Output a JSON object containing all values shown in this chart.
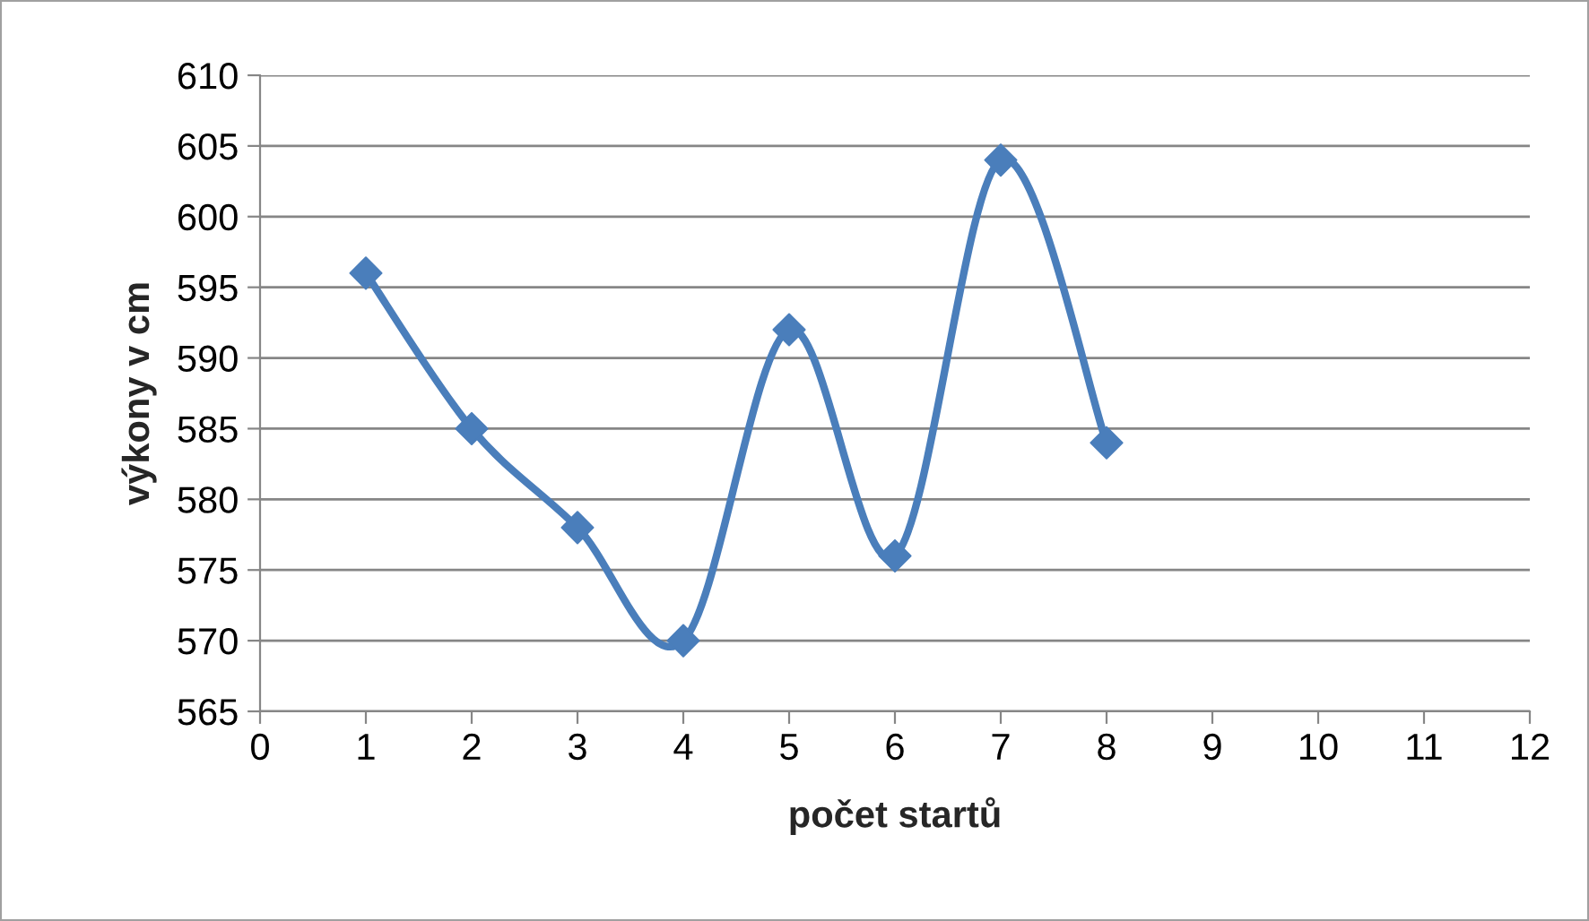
{
  "chart_data": {
    "type": "line",
    "xlabel": "počet startů",
    "ylabel": "výkony v cm",
    "x": [
      1,
      2,
      3,
      4,
      5,
      6,
      7,
      8
    ],
    "series": [
      {
        "color": "#4a7ebb",
        "values": [
          596,
          585,
          578,
          570,
          592,
          576,
          604,
          584
        ]
      }
    ],
    "xlim": [
      0,
      12
    ],
    "xticks": [
      0,
      1,
      2,
      3,
      4,
      5,
      6,
      7,
      8,
      9,
      10,
      11,
      12
    ],
    "ylim": [
      565,
      610
    ],
    "yticks": [
      565,
      570,
      575,
      580,
      585,
      590,
      595,
      600,
      605,
      610
    ],
    "grid": "y",
    "marker": "diamond",
    "line_style": "solid",
    "legend": false
  }
}
